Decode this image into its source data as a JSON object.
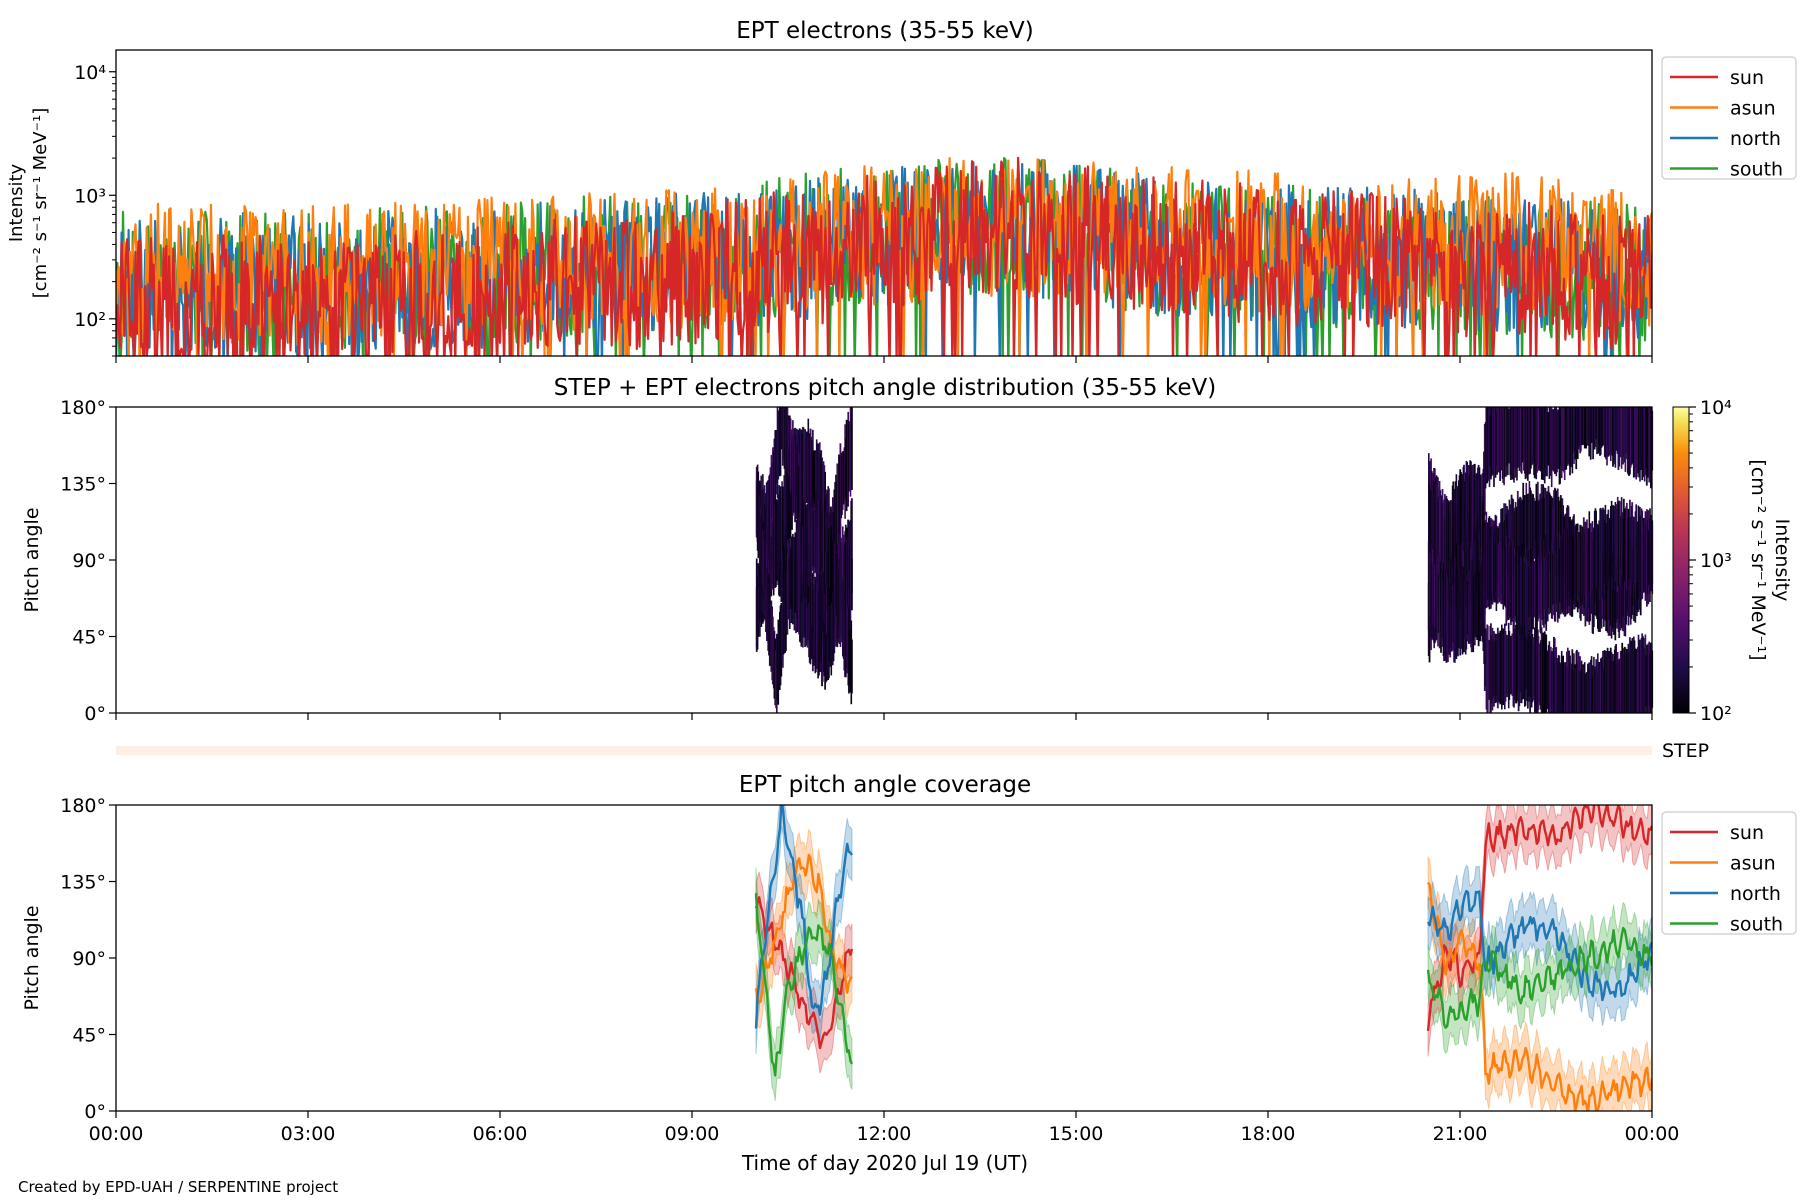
{
  "credit": "Created by EPD-UAH / SERPENTINE project",
  "colors": {
    "sun": "#d62728",
    "asun": "#ff7f0e",
    "north": "#1f77b4",
    "south": "#2ca02c",
    "step_band": "#fdeee6"
  },
  "chart_data": [
    {
      "type": "line",
      "title": "EPT electrons (35-55 keV)",
      "ylabel_lines": [
        "Intensity",
        "[cm⁻² s⁻¹ sr⁻¹ MeV⁻¹]"
      ],
      "yscale": "log",
      "ylim": [
        50,
        15000
      ],
      "yticks": [
        {
          "value": 100,
          "label": "10²"
        },
        {
          "value": 1000,
          "label": "10³"
        },
        {
          "value": 10000,
          "label": "10⁴"
        }
      ],
      "legend": {
        "placement": "outside-top-right",
        "entries": [
          "sun",
          "asun",
          "north",
          "south"
        ]
      },
      "series": [
        {
          "name": "sun",
          "color": "#d62728",
          "trend": [
            [
              0,
              130
            ],
            [
              3,
              130
            ],
            [
              6,
              160
            ],
            [
              9,
              220
            ],
            [
              11,
              330
            ],
            [
              12,
              420
            ],
            [
              13,
              520
            ],
            [
              14,
              560
            ],
            [
              15,
              480
            ],
            [
              16,
              380
            ],
            [
              18,
              320
            ],
            [
              20,
              280
            ],
            [
              21,
              270
            ],
            [
              22,
              250
            ],
            [
              23,
              210
            ],
            [
              24,
              190
            ]
          ]
        },
        {
          "name": "asun",
          "color": "#ff7f0e",
          "trend": [
            [
              0,
              230
            ],
            [
              3,
              220
            ],
            [
              6,
              260
            ],
            [
              9,
              320
            ],
            [
              11,
              420
            ],
            [
              12,
              480
            ],
            [
              13,
              540
            ],
            [
              14,
              560
            ],
            [
              15,
              520
            ],
            [
              16,
              460
            ],
            [
              18,
              420
            ],
            [
              20,
              420
            ],
            [
              21,
              430
            ],
            [
              22,
              400
            ],
            [
              23,
              360
            ],
            [
              24,
              320
            ]
          ]
        },
        {
          "name": "north",
          "color": "#1f77b4",
          "trend": [
            [
              0,
              200
            ],
            [
              3,
              190
            ],
            [
              6,
              220
            ],
            [
              9,
              280
            ],
            [
              11,
              380
            ],
            [
              12,
              460
            ],
            [
              13,
              530
            ],
            [
              14,
              550
            ],
            [
              15,
              490
            ],
            [
              16,
              400
            ],
            [
              18,
              330
            ],
            [
              20,
              300
            ],
            [
              21,
              300
            ],
            [
              22,
              280
            ],
            [
              23,
              250
            ],
            [
              24,
              230
            ]
          ]
        },
        {
          "name": "south",
          "color": "#2ca02c",
          "trend": [
            [
              0,
              210
            ],
            [
              3,
              200
            ],
            [
              6,
              230
            ],
            [
              9,
              300
            ],
            [
              11,
              420
            ],
            [
              12,
              500
            ],
            [
              13,
              560
            ],
            [
              14,
              580
            ],
            [
              15,
              510
            ],
            [
              16,
              410
            ],
            [
              18,
              330
            ],
            [
              20,
              290
            ],
            [
              21,
              280
            ],
            [
              22,
              260
            ],
            [
              23,
              240
            ],
            [
              24,
              220
            ]
          ]
        }
      ],
      "peaks": [
        {
          "x": 12.7,
          "value": 1400
        },
        {
          "x": 14.6,
          "value": 1300
        }
      ]
    },
    {
      "type": "heatmap",
      "title": "STEP + EPT electrons pitch angle distribution (35-55 keV)",
      "ylabel": "Pitch angle",
      "ylim": [
        0,
        180
      ],
      "yticks": [
        {
          "value": 0,
          "label": "0°"
        },
        {
          "value": 45,
          "label": "45°"
        },
        {
          "value": 90,
          "label": "90°"
        },
        {
          "value": 135,
          "label": "135°"
        },
        {
          "value": 180,
          "label": "180°"
        }
      ],
      "colorbar": {
        "label_lines": [
          "Intensity",
          "[cm⁻² s⁻¹ sr⁻¹ MeV⁻¹]"
        ],
        "scale": "log",
        "range": [
          100,
          10000
        ],
        "colormap": "inferno",
        "ticks": [
          {
            "value": 100,
            "label": "10²"
          },
          {
            "value": 1000,
            "label": "10³"
          },
          {
            "value": 10000,
            "label": "10⁴"
          }
        ]
      },
      "coverage_windows": [
        [
          10.0,
          11.5
        ],
        [
          20.5,
          24.0
        ]
      ],
      "step_label": "STEP",
      "typical_intensity": 150
    },
    {
      "type": "line",
      "title": "EPT pitch angle coverage",
      "ylabel": "Pitch angle",
      "xlabel": "Time of day 2020 Jul 19 (UT)",
      "ylim": [
        0,
        180
      ],
      "yticks": [
        {
          "value": 0,
          "label": "0°"
        },
        {
          "value": 45,
          "label": "45°"
        },
        {
          "value": 90,
          "label": "90°"
        },
        {
          "value": 135,
          "label": "135°"
        },
        {
          "value": 180,
          "label": "180°"
        }
      ],
      "xlim": [
        0,
        24
      ],
      "xticks": [
        {
          "value": 0,
          "label": "00:00"
        },
        {
          "value": 3,
          "label": "03:00"
        },
        {
          "value": 6,
          "label": "06:00"
        },
        {
          "value": 9,
          "label": "09:00"
        },
        {
          "value": 12,
          "label": "12:00"
        },
        {
          "value": 15,
          "label": "15:00"
        },
        {
          "value": 18,
          "label": "18:00"
        },
        {
          "value": 21,
          "label": "21:00"
        },
        {
          "value": 24,
          "label": "00:00"
        }
      ],
      "legend": {
        "placement": "outside-top-right",
        "entries": [
          "sun",
          "asun",
          "north",
          "south"
        ]
      },
      "band_halfwidth": 15,
      "series": [
        {
          "name": "sun",
          "color": "#d62728",
          "segments": [
            [
              [
                10.0,
                120
              ],
              [
                10.3,
                100
              ],
              [
                10.6,
                75
              ],
              [
                10.9,
                50
              ],
              [
                11.1,
                40
              ],
              [
                11.3,
                70
              ],
              [
                11.5,
                100
              ]
            ],
            [
              [
                20.5,
                55
              ],
              [
                20.8,
                95
              ],
              [
                21.0,
                80
              ],
              [
                21.3,
                90
              ],
              [
                21.4,
                160
              ],
              [
                22.0,
                165
              ],
              [
                22.5,
                160
              ],
              [
                23.0,
                178
              ],
              [
                23.5,
                170
              ],
              [
                24.0,
                160
              ]
            ]
          ]
        },
        {
          "name": "asun",
          "color": "#ff7f0e",
          "segments": [
            [
              [
                10.0,
                65
              ],
              [
                10.3,
                100
              ],
              [
                10.6,
                140
              ],
              [
                10.8,
                145
              ],
              [
                11.0,
                130
              ],
              [
                11.2,
                90
              ],
              [
                11.5,
                75
              ]
            ],
            [
              [
                20.5,
                130
              ],
              [
                20.8,
                85
              ],
              [
                21.0,
                100
              ],
              [
                21.3,
                90
              ],
              [
                21.4,
                25
              ],
              [
                22.0,
                30
              ],
              [
                22.5,
                15
              ],
              [
                23.0,
                5
              ],
              [
                23.5,
                15
              ],
              [
                24.0,
                20
              ]
            ]
          ]
        },
        {
          "name": "north",
          "color": "#1f77b4",
          "segments": [
            [
              [
                10.0,
                55
              ],
              [
                10.2,
                120
              ],
              [
                10.4,
                175
              ],
              [
                10.7,
                120
              ],
              [
                10.9,
                55
              ],
              [
                11.1,
                75
              ],
              [
                11.3,
                130
              ],
              [
                11.5,
                160
              ]
            ],
            [
              [
                20.5,
                115
              ],
              [
                20.8,
                105
              ],
              [
                21.0,
                120
              ],
              [
                21.3,
                125
              ],
              [
                21.4,
                85
              ],
              [
                22.0,
                110
              ],
              [
                22.5,
                105
              ],
              [
                23.0,
                75
              ],
              [
                23.5,
                70
              ],
              [
                24.0,
                95
              ]
            ]
          ]
        },
        {
          "name": "south",
          "color": "#2ca02c",
          "segments": [
            [
              [
                10.0,
                125
              ],
              [
                10.3,
                20
              ],
              [
                10.5,
                75
              ],
              [
                10.8,
                100
              ],
              [
                11.0,
                105
              ],
              [
                11.2,
                85
              ],
              [
                11.5,
                25
              ]
            ],
            [
              [
                20.5,
                75
              ],
              [
                20.8,
                55
              ],
              [
                21.0,
                60
              ],
              [
                21.3,
                65
              ],
              [
                21.4,
                90
              ],
              [
                22.0,
                70
              ],
              [
                22.5,
                80
              ],
              [
                23.0,
                90
              ],
              [
                23.5,
                100
              ],
              [
                24.0,
                90
              ]
            ]
          ]
        }
      ]
    }
  ]
}
